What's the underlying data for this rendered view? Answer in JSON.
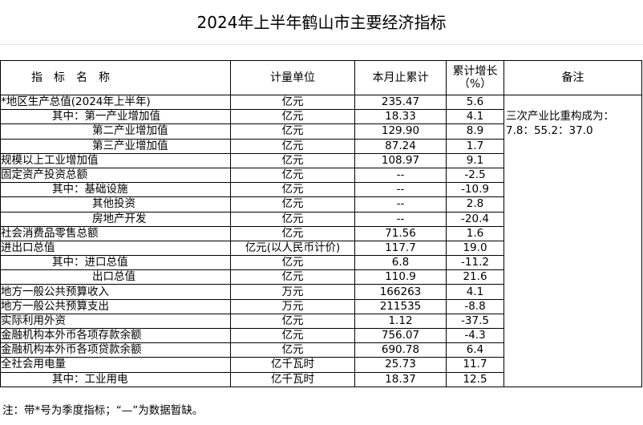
{
  "title": "2024年上半年鹤山市主要经济指标",
  "headers": {
    "name": "指　标　名　称",
    "unit": "计量单位",
    "value": "本月止累计",
    "growth": "累计增长（%）",
    "note": "备注"
  },
  "note_lines": [
    "三次产业比重构成为：",
    "7.8：55.2：37.0"
  ],
  "rows": [
    {
      "name": "*地区生产总值(2024年上半年)",
      "indent": 0,
      "unit": "亿元",
      "value": "235.47",
      "growth": "5.6"
    },
    {
      "name": "其中：第一产业增加值",
      "indent": 1,
      "unit": "亿元",
      "value": "18.33",
      "growth": "4.1"
    },
    {
      "name": "第二产业增加值",
      "indent": 2,
      "unit": "亿元",
      "value": "129.90",
      "growth": "8.9"
    },
    {
      "name": "第三产业增加值",
      "indent": 2,
      "unit": "亿元",
      "value": "87.24",
      "growth": "1.7"
    },
    {
      "name": "规模以上工业增加值",
      "indent": 0,
      "unit": "亿元",
      "value": "108.97",
      "growth": "9.1"
    },
    {
      "name": "固定资产投资总额",
      "indent": 0,
      "unit": "亿元",
      "value": "--",
      "growth": "-2.5"
    },
    {
      "name": "其中：基础设施",
      "indent": 1,
      "unit": "亿元",
      "value": "--",
      "growth": "-10.9"
    },
    {
      "name": "其他投资",
      "indent": 2,
      "unit": "亿元",
      "value": "--",
      "growth": "2.8"
    },
    {
      "name": "房地产开发",
      "indent": 2,
      "unit": "亿元",
      "value": "--",
      "growth": "-20.4"
    },
    {
      "name": "社会消费品零售总额",
      "indent": 0,
      "unit": "亿元",
      "value": "71.56",
      "growth": "1.6"
    },
    {
      "name": "进出口总值",
      "indent": 0,
      "unit": "亿元(以人民币计价)",
      "value": "117.7",
      "growth": "19.0"
    },
    {
      "name": "其中：进口总值",
      "indent": 1,
      "unit": "亿元",
      "value": "6.8",
      "growth": "-11.2"
    },
    {
      "name": "出口总值",
      "indent": 2,
      "unit": "亿元",
      "value": "110.9",
      "growth": "21.6"
    },
    {
      "name": "地方一般公共预算收入",
      "indent": 0,
      "unit": "万元",
      "value": "166263",
      "growth": "4.1"
    },
    {
      "name": "地方一般公共预算支出",
      "indent": 0,
      "unit": "万元",
      "value": "211535",
      "growth": "-8.8"
    },
    {
      "name": "实际利用外资",
      "indent": 0,
      "unit": "亿元",
      "value": "1.12",
      "growth": "-37.5"
    },
    {
      "name": "金融机构本外币各项存款余额",
      "indent": 0,
      "unit": "亿元",
      "value": "756.07",
      "growth": "-4.3"
    },
    {
      "name": "金融机构本外币各项贷款余额",
      "indent": 0,
      "unit": "亿元",
      "value": "690.78",
      "growth": "6.4"
    },
    {
      "name": "全社会用电量",
      "indent": 0,
      "unit": "亿千瓦时",
      "value": "25.73",
      "growth": "11.7"
    },
    {
      "name": "其中：工业用电",
      "indent": 1,
      "unit": "亿千瓦时",
      "value": "18.37",
      "growth": "12.5"
    }
  ],
  "footnote": "注：带*号为季度指标；“—”为数据暂缺。"
}
